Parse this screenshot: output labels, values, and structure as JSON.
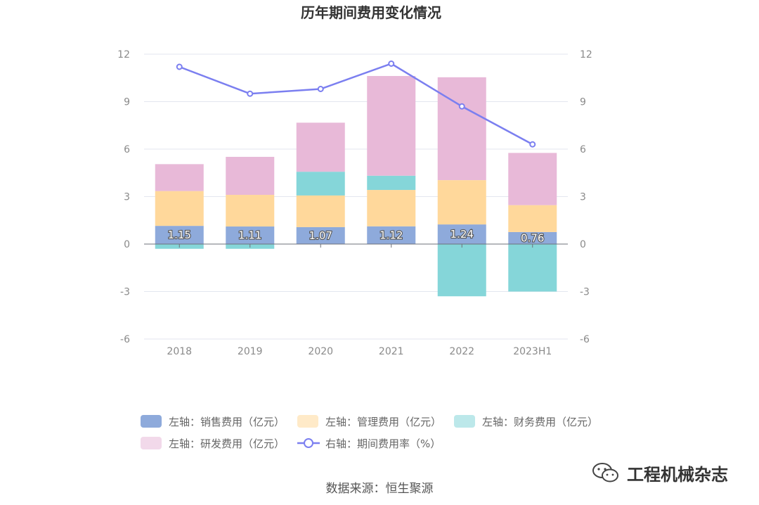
{
  "chart_data": {
    "type": "bar",
    "title": "历年期间费用变化情况",
    "categories": [
      "2018",
      "2019",
      "2020",
      "2021",
      "2022",
      "2023H1"
    ],
    "y_left_ticks": [
      "12",
      "9",
      "6",
      "3",
      "0",
      "-3",
      "-6"
    ],
    "y_right_ticks": [
      "12",
      "9",
      "6",
      "3",
      "0",
      "-3",
      "-6"
    ],
    "ylim": [
      -6,
      12
    ],
    "y2lim": [
      -6,
      12
    ],
    "grid": true,
    "legend_position": "bottom",
    "series": [
      {
        "name": "左轴：销售费用（亿元）",
        "kind": "bar",
        "axis": "left",
        "color": "#8eaadb",
        "values": [
          1.15,
          1.11,
          1.07,
          1.12,
          1.24,
          0.76
        ],
        "labels": [
          "1.15",
          "1.11",
          "1.07",
          "1.12",
          "1.24",
          "0.76"
        ]
      },
      {
        "name": "左轴：管理费用（亿元）",
        "kind": "bar",
        "axis": "left",
        "color": "#ffd89b",
        "values": [
          2.2,
          2.0,
          2.0,
          2.3,
          2.8,
          1.7
        ]
      },
      {
        "name": "左轴：财务费用（亿元）",
        "kind": "bar",
        "axis": "left",
        "color": "#85d6d9",
        "values": [
          -0.3,
          -0.3,
          1.5,
          0.9,
          -3.3,
          -3.0
        ]
      },
      {
        "name": "左轴：研发费用（亿元）",
        "kind": "bar",
        "axis": "left",
        "color": "#e8b9d8",
        "values": [
          1.7,
          2.4,
          3.1,
          6.3,
          6.5,
          3.3
        ]
      },
      {
        "name": "右轴：期间费用率（%）",
        "kind": "line",
        "axis": "right",
        "color": "#7b7ff0",
        "values": [
          11.2,
          9.5,
          9.8,
          11.4,
          8.7,
          6.3
        ]
      }
    ]
  },
  "footer": {
    "source": "数据来源：恒生聚源",
    "watermark": "工程机械杂志",
    "watermark_icon": "wechat-icon"
  }
}
